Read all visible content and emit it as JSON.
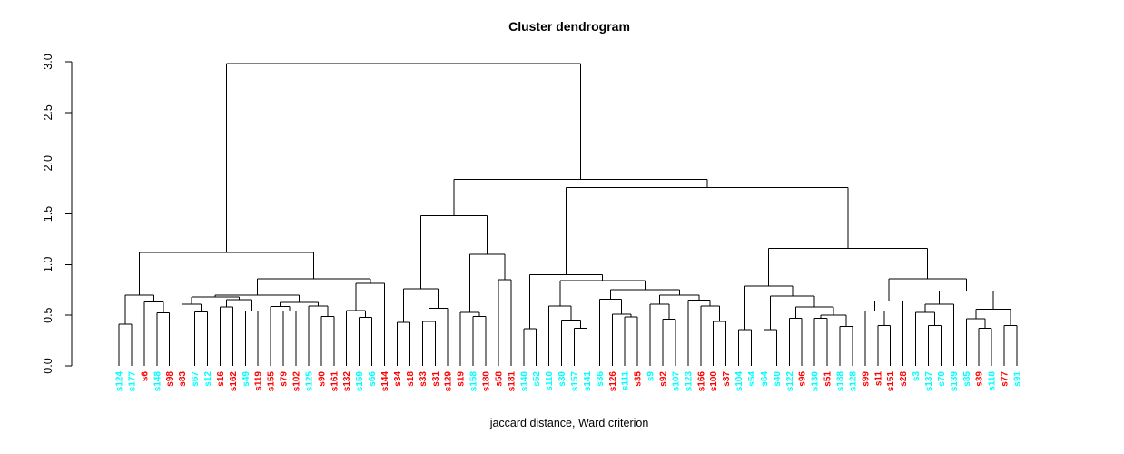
{
  "chart_data": {
    "type": "dendrogram",
    "title": "Cluster dendrogram",
    "xlabel": "jaccard distance, Ward criterion",
    "ylabel": "",
    "ylim": [
      0,
      3
    ],
    "grid": false,
    "yticks": [
      {
        "v": 0.0,
        "label": "0.0"
      },
      {
        "v": 0.5,
        "label": "0.5"
      },
      {
        "v": 1.0,
        "label": "1.0"
      },
      {
        "v": 1.5,
        "label": "1.5"
      },
      {
        "v": 2.0,
        "label": "2.0"
      },
      {
        "v": 2.5,
        "label": "2.5"
      },
      {
        "v": 3.0,
        "label": "3.0"
      }
    ],
    "colors": {
      "red": "#ff0000",
      "cyan": "#00ffff",
      "line": "#000000"
    },
    "leaves": [
      {
        "label": "s124",
        "color": "cyan"
      },
      {
        "label": "s177",
        "color": "cyan"
      },
      {
        "label": "s6",
        "color": "red"
      },
      {
        "label": "s148",
        "color": "cyan"
      },
      {
        "label": "s98",
        "color": "red"
      },
      {
        "label": "s83",
        "color": "red"
      },
      {
        "label": "s67",
        "color": "cyan"
      },
      {
        "label": "s12",
        "color": "cyan"
      },
      {
        "label": "s16",
        "color": "red"
      },
      {
        "label": "s162",
        "color": "red"
      },
      {
        "label": "s49",
        "color": "cyan"
      },
      {
        "label": "s119",
        "color": "red"
      },
      {
        "label": "s155",
        "color": "red"
      },
      {
        "label": "s79",
        "color": "red"
      },
      {
        "label": "s102",
        "color": "red"
      },
      {
        "label": "s125",
        "color": "cyan"
      },
      {
        "label": "s90",
        "color": "red"
      },
      {
        "label": "s161",
        "color": "red"
      },
      {
        "label": "s132",
        "color": "red"
      },
      {
        "label": "s159",
        "color": "cyan"
      },
      {
        "label": "s66",
        "color": "cyan"
      },
      {
        "label": "s144",
        "color": "red"
      },
      {
        "label": "s34",
        "color": "red"
      },
      {
        "label": "s18",
        "color": "red"
      },
      {
        "label": "s33",
        "color": "red"
      },
      {
        "label": "s31",
        "color": "red"
      },
      {
        "label": "s129",
        "color": "red"
      },
      {
        "label": "s19",
        "color": "red"
      },
      {
        "label": "s158",
        "color": "cyan"
      },
      {
        "label": "s180",
        "color": "red"
      },
      {
        "label": "s58",
        "color": "red"
      },
      {
        "label": "s181",
        "color": "red"
      },
      {
        "label": "s140",
        "color": "cyan"
      },
      {
        "label": "s52",
        "color": "cyan"
      },
      {
        "label": "s110",
        "color": "cyan"
      },
      {
        "label": "s30",
        "color": "cyan"
      },
      {
        "label": "s157",
        "color": "cyan"
      },
      {
        "label": "s141",
        "color": "cyan"
      },
      {
        "label": "s36",
        "color": "cyan"
      },
      {
        "label": "s126",
        "color": "red"
      },
      {
        "label": "s111",
        "color": "cyan"
      },
      {
        "label": "s35",
        "color": "red"
      },
      {
        "label": "s9",
        "color": "cyan"
      },
      {
        "label": "s92",
        "color": "red"
      },
      {
        "label": "s107",
        "color": "cyan"
      },
      {
        "label": "s123",
        "color": "cyan"
      },
      {
        "label": "s166",
        "color": "red"
      },
      {
        "label": "s100",
        "color": "red"
      },
      {
        "label": "s37",
        "color": "red"
      },
      {
        "label": "s104",
        "color": "cyan"
      },
      {
        "label": "s54",
        "color": "cyan"
      },
      {
        "label": "s64",
        "color": "cyan"
      },
      {
        "label": "s40",
        "color": "cyan"
      },
      {
        "label": "s122",
        "color": "cyan"
      },
      {
        "label": "s96",
        "color": "red"
      },
      {
        "label": "s130",
        "color": "cyan"
      },
      {
        "label": "s51",
        "color": "red"
      },
      {
        "label": "s188",
        "color": "cyan"
      },
      {
        "label": "s128",
        "color": "cyan"
      },
      {
        "label": "s99",
        "color": "red"
      },
      {
        "label": "s11",
        "color": "red"
      },
      {
        "label": "s151",
        "color": "red"
      },
      {
        "label": "s28",
        "color": "red"
      },
      {
        "label": "s3",
        "color": "cyan"
      },
      {
        "label": "s137",
        "color": "cyan"
      },
      {
        "label": "s70",
        "color": "cyan"
      },
      {
        "label": "s139",
        "color": "cyan"
      },
      {
        "label": "s85",
        "color": "cyan"
      },
      {
        "label": "s39",
        "color": "red"
      },
      {
        "label": "s118",
        "color": "cyan"
      },
      {
        "label": "s77",
        "color": "red"
      },
      {
        "label": "s91",
        "color": "cyan"
      }
    ],
    "tree": {
      "h": 2.98,
      "c": [
        {
          "h": 1.12,
          "c": [
            {
              "h": 0.7,
              "c": [
                {
                  "h": 0.41,
                  "c": [
                    "s124",
                    "s177"
                  ]
                },
                {
                  "h": 0.63,
                  "c": [
                    "s6",
                    {
                      "h": 0.525,
                      "c": [
                        "s148",
                        "s98"
                      ]
                    }
                  ]
                }
              ]
            },
            {
              "h": 0.86,
              "c": [
                {
                  "h": 0.7,
                  "c": [
                    {
                      "h": 0.68,
                      "c": [
                        {
                          "h": 0.61,
                          "c": [
                            "s83",
                            {
                              "h": 0.535,
                              "c": [
                                "s67",
                                "s12"
                              ]
                            }
                          ]
                        },
                        {
                          "h": 0.655,
                          "c": [
                            {
                              "h": 0.58,
                              "c": [
                                "s16",
                                "s162"
                              ]
                            },
                            {
                              "h": 0.54,
                              "c": [
                                "s49",
                                "s119"
                              ]
                            }
                          ]
                        }
                      ]
                    },
                    {
                      "h": 0.625,
                      "c": [
                        {
                          "h": 0.585,
                          "c": [
                            "s155",
                            {
                              "h": 0.54,
                              "c": [
                                "s79",
                                "s102"
                              ]
                            }
                          ]
                        },
                        {
                          "h": 0.59,
                          "c": [
                            "s125",
                            {
                              "h": 0.49,
                              "c": [
                                "s90",
                                "s161"
                              ]
                            }
                          ]
                        }
                      ]
                    }
                  ]
                },
                {
                  "h": 0.815,
                  "c": [
                    {
                      "h": 0.545,
                      "c": [
                        "s132",
                        {
                          "h": 0.48,
                          "c": [
                            "s159",
                            "s66"
                          ]
                        }
                      ]
                    },
                    "s144"
                  ]
                }
              ]
            }
          ]
        },
        {
          "h": 1.84,
          "c": [
            {
              "h": 1.48,
              "c": [
                {
                  "h": 0.76,
                  "c": [
                    {
                      "h": 0.43,
                      "c": [
                        "s34",
                        "s18"
                      ]
                    },
                    {
                      "h": 0.57,
                      "c": [
                        {
                          "h": 0.44,
                          "c": [
                            "s33",
                            "s31"
                          ]
                        },
                        "s129"
                      ]
                    }
                  ]
                },
                {
                  "h": 1.1,
                  "c": [
                    {
                      "h": 0.53,
                      "c": [
                        "s19",
                        {
                          "h": 0.49,
                          "c": [
                            "s158",
                            "s180"
                          ]
                        }
                      ]
                    },
                    {
                      "h": 0.85,
                      "c": [
                        "s58",
                        "s181"
                      ]
                    }
                  ]
                }
              ]
            },
            {
              "h": 1.76,
              "c": [
                {
                  "h": 0.9,
                  "c": [
                    {
                      "h": 0.365,
                      "c": [
                        "s140",
                        "s52"
                      ]
                    },
                    {
                      "h": 0.84,
                      "c": [
                        {
                          "h": 0.59,
                          "c": [
                            "s110",
                            {
                              "h": 0.45,
                              "c": [
                                "s30",
                                {
                                  "h": 0.37,
                                  "c": [
                                    "s157",
                                    "s141"
                                  ]
                                }
                              ]
                            }
                          ]
                        },
                        {
                          "h": 0.75,
                          "c": [
                            {
                              "h": 0.66,
                              "c": [
                                "s36",
                                {
                                  "h": 0.51,
                                  "c": [
                                    "s126",
                                    {
                                      "h": 0.485,
                                      "c": [
                                        "s111",
                                        "s35"
                                      ]
                                    }
                                  ]
                                }
                              ]
                            },
                            {
                              "h": 0.7,
                              "c": [
                                {
                                  "h": 0.61,
                                  "c": [
                                    "s9",
                                    {
                                      "h": 0.46,
                                      "c": [
                                        "s92",
                                        "s107"
                                      ]
                                    }
                                  ]
                                },
                                {
                                  "h": 0.65,
                                  "c": [
                                    "s123",
                                    {
                                      "h": 0.59,
                                      "c": [
                                        "s166",
                                        {
                                          "h": 0.44,
                                          "c": [
                                            "s100",
                                            "s37"
                                          ]
                                        }
                                      ]
                                    }
                                  ]
                                }
                              ]
                            }
                          ]
                        }
                      ]
                    }
                  ]
                },
                {
                  "h": 1.16,
                  "c": [
                    {
                      "h": 0.79,
                      "c": [
                        {
                          "h": 0.36,
                          "c": [
                            "s104",
                            "s54"
                          ]
                        },
                        {
                          "h": 0.69,
                          "c": [
                            {
                              "h": 0.36,
                              "c": [
                                "s64",
                                "s40"
                              ]
                            },
                            {
                              "h": 0.58,
                              "c": [
                                {
                                  "h": 0.47,
                                  "c": [
                                    "s122",
                                    "s96"
                                  ]
                                },
                                {
                                  "h": 0.5,
                                  "c": [
                                    {
                                      "h": 0.47,
                                      "c": [
                                        "s130",
                                        "s51"
                                      ]
                                    },
                                    {
                                      "h": 0.39,
                                      "c": [
                                        "s188",
                                        "s128"
                                      ]
                                    }
                                  ]
                                }
                              ]
                            }
                          ]
                        }
                      ]
                    },
                    {
                      "h": 0.86,
                      "c": [
                        {
                          "h": 0.64,
                          "c": [
                            {
                              "h": 0.54,
                              "c": [
                                "s99",
                                {
                                  "h": 0.4,
                                  "c": [
                                    "s11",
                                    "s151"
                                  ]
                                }
                              ]
                            },
                            "s28"
                          ]
                        },
                        {
                          "h": 0.74,
                          "c": [
                            {
                              "h": 0.61,
                              "c": [
                                {
                                  "h": 0.53,
                                  "c": [
                                    "s3",
                                    {
                                      "h": 0.4,
                                      "c": [
                                        "s137",
                                        "s70"
                                      ]
                                    }
                                  ]
                                },
                                "s139"
                              ]
                            },
                            {
                              "h": 0.56,
                              "c": [
                                {
                                  "h": 0.465,
                                  "c": [
                                    "s85",
                                    {
                                      "h": 0.37,
                                      "c": [
                                        "s39",
                                        "s118"
                                      ]
                                    }
                                  ]
                                },
                                {
                                  "h": 0.4,
                                  "c": [
                                    "s77",
                                    "s91"
                                  ]
                                }
                              ]
                            }
                          ]
                        }
                      ]
                    }
                  ]
                }
              ]
            }
          ]
        }
      ]
    }
  }
}
